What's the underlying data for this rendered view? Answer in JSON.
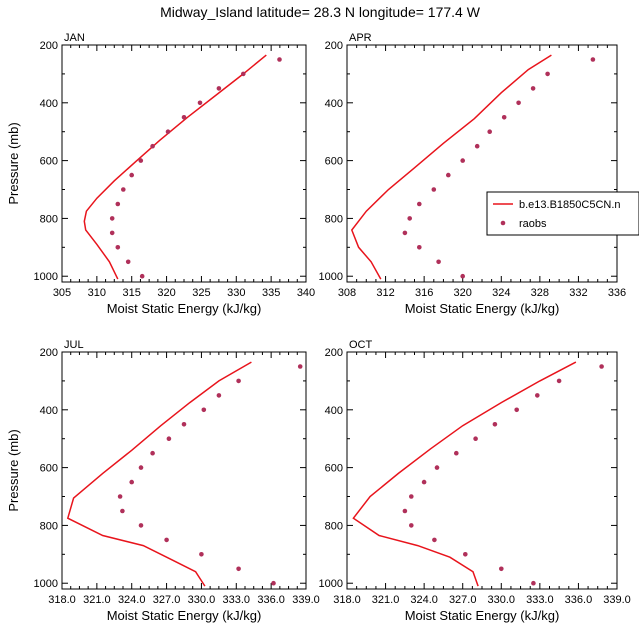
{
  "title": "Midway_Island  latitude= 28.3 N longitude= 177.4 W",
  "colors": {
    "model": "#e8141c",
    "raobs": "#b0305a"
  },
  "legend": {
    "model_label": "b.e13.B1850C5CN.n",
    "raobs_label": "raobs"
  },
  "chart_data": [
    {
      "type": "line",
      "panel": "JAN",
      "xlabel": "Moist Static Energy (kJ/kg)",
      "ylabel": "Pressure (mb)",
      "xlim": [
        305,
        340
      ],
      "ylim": [
        1020,
        200
      ],
      "xticks": [
        305,
        310,
        315,
        320,
        325,
        330,
        335,
        340
      ],
      "xtick_labels": [
        "305",
        "310",
        "315",
        "320",
        "325",
        "330",
        "335",
        "340"
      ],
      "yticks": [
        200,
        400,
        600,
        800,
        1000
      ],
      "yticks_minor": [
        300,
        500,
        700,
        900
      ],
      "series": [
        {
          "name": "b.e13.B1850C5CN.n",
          "kind": "line",
          "points": [
            [
              334.3,
              235
            ],
            [
              331.0,
              300
            ],
            [
              327.0,
              375
            ],
            [
              323.0,
              450
            ],
            [
              319.0,
              530
            ],
            [
              315.5,
              605
            ],
            [
              312.5,
              670
            ],
            [
              310.0,
              730
            ],
            [
              308.5,
              775
            ],
            [
              308.2,
              810
            ],
            [
              308.4,
              840
            ],
            [
              310.0,
              890
            ],
            [
              311.8,
              950
            ],
            [
              313.0,
              1010
            ]
          ]
        },
        {
          "name": "raobs",
          "kind": "scatter",
          "points": [
            [
              336.2,
              250
            ],
            [
              331.0,
              300
            ],
            [
              327.5,
              350
            ],
            [
              324.8,
              400
            ],
            [
              322.5,
              450
            ],
            [
              320.2,
              500
            ],
            [
              318.0,
              550
            ],
            [
              316.3,
              600
            ],
            [
              315.0,
              650
            ],
            [
              313.8,
              700
            ],
            [
              313.0,
              750
            ],
            [
              312.2,
              800
            ],
            [
              312.2,
              850
            ],
            [
              313.0,
              900
            ],
            [
              314.5,
              950
            ],
            [
              316.5,
              1000
            ]
          ]
        }
      ]
    },
    {
      "type": "line",
      "panel": "APR",
      "xlabel": "Moist Static Energy (kJ/kg)",
      "ylabel": "",
      "xlim": [
        308,
        336
      ],
      "ylim": [
        1020,
        200
      ],
      "xticks": [
        308,
        312,
        316,
        320,
        324,
        328,
        332,
        336
      ],
      "xtick_labels": [
        "308",
        "312",
        "316",
        "320",
        "324",
        "328",
        "332",
        "336"
      ],
      "yticks": [
        200,
        400,
        600,
        800,
        1000
      ],
      "yticks_minor": [
        300,
        500,
        700,
        900
      ],
      "series": [
        {
          "name": "b.e13.B1850C5CN.n",
          "kind": "line",
          "points": [
            [
              329.2,
              235
            ],
            [
              326.8,
              285
            ],
            [
              324.0,
              365
            ],
            [
              321.2,
              455
            ],
            [
              318.0,
              540
            ],
            [
              315.0,
              625
            ],
            [
              312.3,
              700
            ],
            [
              310.0,
              775
            ],
            [
              308.5,
              840
            ],
            [
              309.2,
              900
            ],
            [
              310.5,
              950
            ],
            [
              311.5,
              1010
            ]
          ]
        },
        {
          "name": "raobs",
          "kind": "scatter",
          "points": [
            [
              333.5,
              250
            ],
            [
              328.8,
              300
            ],
            [
              327.3,
              350
            ],
            [
              325.8,
              400
            ],
            [
              324.3,
              450
            ],
            [
              322.8,
              500
            ],
            [
              321.5,
              550
            ],
            [
              320.0,
              600
            ],
            [
              318.5,
              650
            ],
            [
              317.0,
              700
            ],
            [
              315.5,
              750
            ],
            [
              314.5,
              800
            ],
            [
              314.0,
              850
            ],
            [
              315.5,
              900
            ],
            [
              317.5,
              950
            ],
            [
              320.0,
              1000
            ]
          ]
        }
      ]
    },
    {
      "type": "line",
      "panel": "JUL",
      "xlabel": "Moist Static Energy (kJ/kg)",
      "ylabel": "Pressure (mb)",
      "xlim": [
        318,
        339
      ],
      "ylim": [
        1020,
        200
      ],
      "xticks": [
        318,
        321,
        324,
        327,
        330,
        333,
        336,
        339
      ],
      "xtick_labels": [
        "318.0",
        "321.0",
        "324.0",
        "327.0",
        "330.0",
        "333.0",
        "336.0",
        "339.0"
      ],
      "yticks": [
        200,
        400,
        600,
        800,
        1000
      ],
      "yticks_minor": [
        300,
        500,
        700,
        900
      ],
      "series": [
        {
          "name": "b.e13.B1850C5CN.n",
          "kind": "line",
          "points": [
            [
              334.3,
              235
            ],
            [
              331.5,
              300
            ],
            [
              329.0,
              375
            ],
            [
              326.5,
              455
            ],
            [
              324.0,
              540
            ],
            [
              321.5,
              620
            ],
            [
              319.0,
              705
            ],
            [
              318.5,
              775
            ],
            [
              321.5,
              835
            ],
            [
              325.0,
              870
            ],
            [
              327.5,
              920
            ],
            [
              329.5,
              960
            ],
            [
              330.3,
              1010
            ]
          ]
        },
        {
          "name": "raobs",
          "kind": "scatter",
          "points": [
            [
              338.5,
              250
            ],
            [
              333.2,
              300
            ],
            [
              331.5,
              350
            ],
            [
              330.2,
              400
            ],
            [
              328.5,
              450
            ],
            [
              327.2,
              500
            ],
            [
              325.8,
              550
            ],
            [
              324.8,
              600
            ],
            [
              324.0,
              650
            ],
            [
              323.0,
              700
            ],
            [
              323.2,
              750
            ],
            [
              324.8,
              800
            ],
            [
              327.0,
              850
            ],
            [
              330.0,
              900
            ],
            [
              333.2,
              950
            ],
            [
              336.2,
              1000
            ]
          ]
        }
      ]
    },
    {
      "type": "line",
      "panel": "OCT",
      "xlabel": "Moist Static Energy (kJ/kg)",
      "ylabel": "",
      "xlim": [
        318,
        339
      ],
      "ylim": [
        1020,
        200
      ],
      "xticks": [
        318,
        321,
        324,
        327,
        330,
        333,
        336,
        339
      ],
      "xtick_labels": [
        "318.0",
        "321.0",
        "324.0",
        "327.0",
        "330.0",
        "333.0",
        "336.0",
        "339.0"
      ],
      "yticks": [
        200,
        400,
        600,
        800,
        1000
      ],
      "yticks_minor": [
        300,
        500,
        700,
        900
      ],
      "series": [
        {
          "name": "b.e13.B1850C5CN.n",
          "kind": "line",
          "points": [
            [
              335.8,
              235
            ],
            [
              333.0,
              300
            ],
            [
              330.0,
              375
            ],
            [
              327.0,
              455
            ],
            [
              324.5,
              535
            ],
            [
              322.0,
              620
            ],
            [
              319.8,
              700
            ],
            [
              318.5,
              775
            ],
            [
              320.5,
              835
            ],
            [
              323.5,
              870
            ],
            [
              326.0,
              910
            ],
            [
              327.8,
              960
            ],
            [
              328.2,
              1010
            ]
          ]
        },
        {
          "name": "raobs",
          "kind": "scatter",
          "points": [
            [
              337.8,
              250
            ],
            [
              334.5,
              300
            ],
            [
              332.8,
              350
            ],
            [
              331.2,
              400
            ],
            [
              329.5,
              450
            ],
            [
              328.0,
              500
            ],
            [
              326.5,
              550
            ],
            [
              325.0,
              600
            ],
            [
              324.0,
              650
            ],
            [
              323.0,
              700
            ],
            [
              322.5,
              750
            ],
            [
              323.0,
              800
            ],
            [
              324.8,
              850
            ],
            [
              327.2,
              900
            ],
            [
              330.0,
              950
            ],
            [
              332.5,
              1000
            ]
          ]
        }
      ]
    }
  ]
}
